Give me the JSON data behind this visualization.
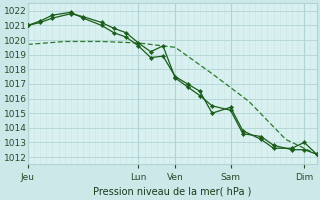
{
  "bg_color": "#cce8e8",
  "plot_bg_color": "#d8f0f0",
  "grid_color_major": "#b0d4d4",
  "grid_color_minor": "#c8e4e4",
  "line_color_dark": "#1a5c1a",
  "line_color_mid": "#2a7a2a",
  "ylabel_text": "Pression niveau de la mer( hPa )",
  "ylim": [
    1011.5,
    1022.5
  ],
  "yticks": [
    1012,
    1013,
    1014,
    1015,
    1016,
    1017,
    1018,
    1019,
    1020,
    1021,
    1022
  ],
  "x_day_labels": [
    "Jeu",
    "Lun",
    "Ven",
    "Sam",
    "Dim"
  ],
  "x_day_positions": [
    0,
    18,
    24,
    33,
    45
  ],
  "xlim": [
    0,
    47
  ],
  "series1_x": [
    0,
    2,
    4,
    7,
    9,
    12,
    14,
    16,
    18,
    20,
    22,
    24,
    26,
    28,
    30,
    33,
    35,
    38,
    40,
    43,
    45,
    47
  ],
  "series1_y": [
    1021.0,
    1021.2,
    1021.5,
    1021.8,
    1021.6,
    1021.2,
    1020.8,
    1020.5,
    1019.8,
    1019.2,
    1019.6,
    1017.4,
    1016.8,
    1016.2,
    1015.5,
    1015.2,
    1013.6,
    1013.4,
    1012.8,
    1012.5,
    1012.5,
    1012.2
  ],
  "series2_x": [
    0,
    2,
    4,
    7,
    9,
    12,
    14,
    16,
    18,
    20,
    22,
    24,
    26,
    28,
    30,
    33,
    35,
    38,
    40,
    43,
    45,
    47
  ],
  "series2_y": [
    1021.0,
    1021.3,
    1021.7,
    1021.9,
    1021.5,
    1021.0,
    1020.5,
    1020.2,
    1019.6,
    1018.8,
    1018.9,
    1017.5,
    1017.0,
    1016.5,
    1015.0,
    1015.4,
    1013.8,
    1013.2,
    1012.6,
    1012.6,
    1013.0,
    1012.2
  ],
  "series3_x": [
    0,
    6,
    12,
    18,
    24,
    30,
    36,
    42,
    47
  ],
  "series3_y": [
    1019.7,
    1019.9,
    1019.9,
    1019.8,
    1019.5,
    1017.7,
    1015.8,
    1013.2,
    1012.2
  ]
}
